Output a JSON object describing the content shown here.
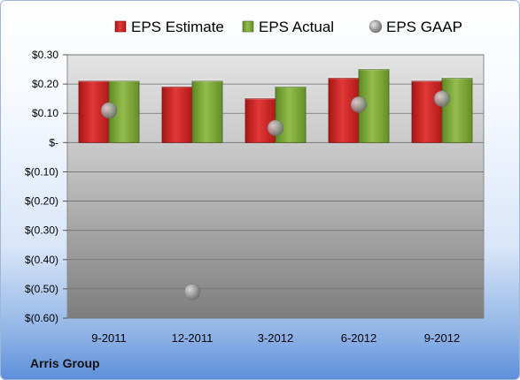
{
  "chart_data": {
    "type": "bar",
    "categories": [
      "9-2011",
      "12-2011",
      "3-2012",
      "6-2012",
      "9-2012"
    ],
    "series": [
      {
        "name": "EPS Estimate",
        "kind": "bar",
        "color": "#d42a2a",
        "values": [
          0.21,
          0.19,
          0.15,
          0.22,
          0.21
        ]
      },
      {
        "name": "EPS Actual",
        "kind": "bar",
        "color": "#7faa3a",
        "values": [
          0.21,
          0.21,
          0.19,
          0.25,
          0.22
        ]
      },
      {
        "name": "EPS GAAP",
        "kind": "marker",
        "color": "#9a9a9a",
        "values": [
          0.11,
          -0.51,
          0.05,
          0.13,
          0.15
        ]
      }
    ],
    "ylim": [
      -0.6,
      0.3
    ],
    "yticks": [
      0.3,
      0.2,
      0.1,
      0,
      -0.1,
      -0.2,
      -0.3,
      -0.4,
      -0.5,
      -0.6
    ],
    "ytick_labels": [
      "$0.30",
      "$0.20",
      "$0.10",
      "$-",
      "$(0.10)",
      "$(0.20)",
      "$(0.30)",
      "$(0.40)",
      "$(0.50)",
      "$(0.60)"
    ],
    "legend_position": "top",
    "grid": true
  },
  "footer": {
    "label": "Arris Group"
  }
}
